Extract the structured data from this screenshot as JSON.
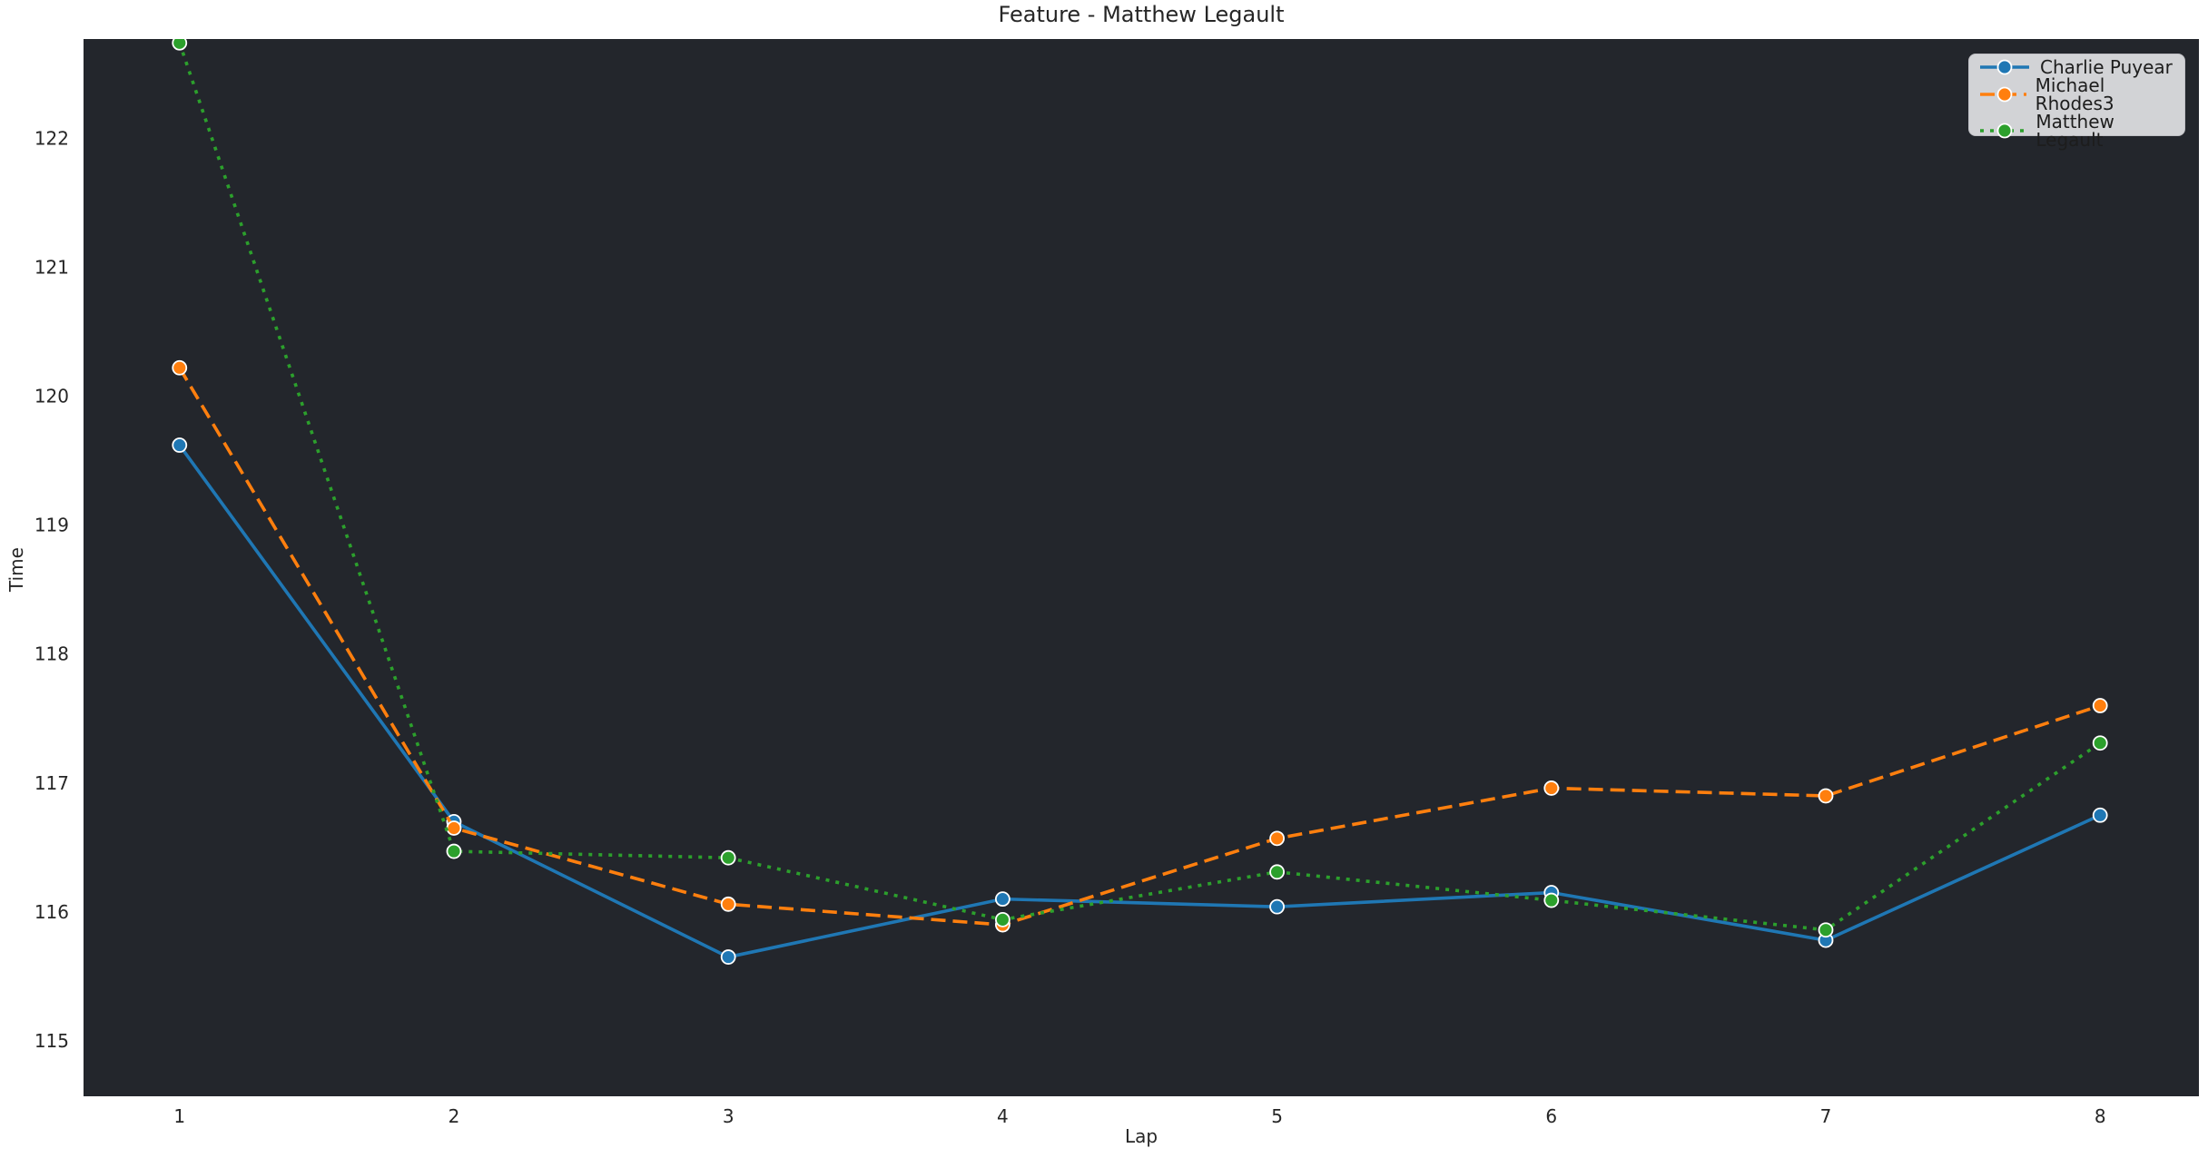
{
  "colors": {
    "figure_bg": "#ffffff",
    "axes_bg": "#23262c",
    "text": "#262626",
    "legend_bg": "#d2d3d6",
    "legend_border": "#bfbfc4",
    "marker_edge": "#ffffff"
  },
  "chart_data": {
    "type": "line",
    "title": "Feature - Matthew Legault",
    "xlabel": "Lap",
    "ylabel": "Time",
    "x": [
      1,
      2,
      3,
      4,
      5,
      6,
      7,
      8
    ],
    "xticks": [
      1,
      2,
      3,
      4,
      5,
      6,
      7,
      8
    ],
    "yticks": [
      115,
      116,
      117,
      118,
      119,
      120,
      121,
      122
    ],
    "xlim": [
      0.65,
      8.36
    ],
    "ylim": [
      114.57,
      122.77
    ],
    "grid": false,
    "legend_position": "upper right",
    "series": [
      {
        "name": "Charlie Puyear",
        "color": "#1f77b4",
        "linestyle": "solid",
        "marker": "circle",
        "values": [
          119.62,
          116.7,
          115.65,
          116.1,
          116.04,
          116.15,
          115.78,
          116.75
        ]
      },
      {
        "name": "Michael Rhodes3",
        "color": "#ff7f0e",
        "linestyle": "dashed",
        "marker": "circle",
        "values": [
          120.22,
          116.65,
          116.06,
          115.9,
          116.57,
          116.96,
          116.9,
          117.6
        ]
      },
      {
        "name": "Matthew Legault",
        "color": "#2ca02c",
        "linestyle": "dotted",
        "marker": "circle",
        "values": [
          122.74,
          116.47,
          116.42,
          115.94,
          116.31,
          116.09,
          115.86,
          117.31
        ]
      }
    ]
  }
}
